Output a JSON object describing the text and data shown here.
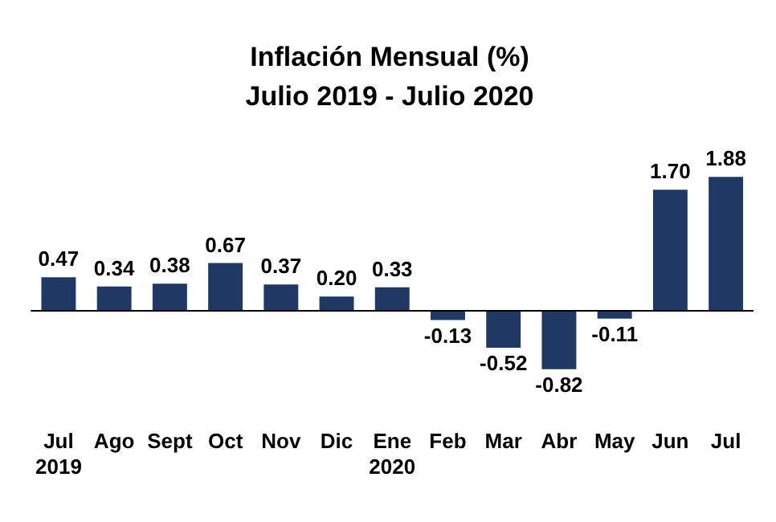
{
  "chart_data": {
    "type": "bar",
    "title": "Inflación Mensual (%)",
    "subtitle": "Julio 2019 - Julio 2020",
    "categories": [
      "Jul 2019",
      "Ago",
      "Sept",
      "Oct",
      "Nov",
      "Dic",
      "Ene 2020",
      "Feb",
      "Mar",
      "Abr",
      "May",
      "Jun",
      "Jul"
    ],
    "values": [
      0.47,
      0.34,
      0.38,
      0.67,
      0.37,
      0.2,
      0.33,
      -0.13,
      -0.52,
      -0.82,
      -0.11,
      1.7,
      1.88
    ],
    "value_labels": [
      "0.47",
      "0.34",
      "0.38",
      "0.67",
      "0.37",
      "0.20",
      "0.33",
      "-0.13",
      "-0.52",
      "-0.82",
      "-0.11",
      "1.70",
      "1.88"
    ],
    "color": "#1f3864",
    "tick_labels": "x"
  }
}
